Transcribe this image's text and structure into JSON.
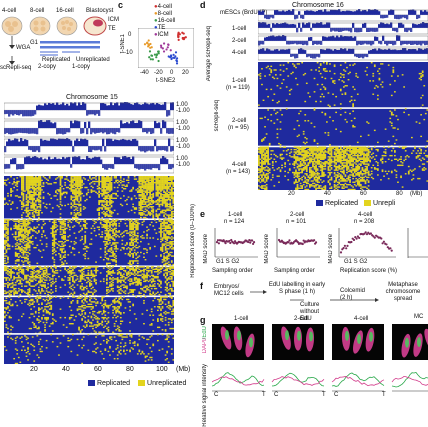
{
  "panel_a": {
    "stage_labels": [
      "4-cell",
      "8-cell",
      "16-cell",
      "Blastocyst"
    ],
    "blastocyst_labels": [
      "ICM",
      "TE"
    ],
    "method_labels": [
      "WGA",
      "scRepli-seq"
    ],
    "phase_label": "G1",
    "copy_labels": [
      "2-copy",
      "1-copy"
    ],
    "state_labels": [
      "Replicated",
      "Unreplicated"
    ]
  },
  "panel_b": {
    "chromosome_title": "Chromosome 15",
    "scale_labels": [
      "1.00",
      "-1.00"
    ],
    "x_ticks": [
      "20",
      "40",
      "60",
      "80",
      "100"
    ],
    "x_unit": "(Mb)",
    "side_label": "Replication score (0–100%)",
    "legend": [
      "Replicated",
      "Unreplicated"
    ]
  },
  "panel_c": {
    "label": "c",
    "legend": [
      "4-cell",
      "8-cell",
      "16-cell",
      "TE",
      "ICM"
    ],
    "ylabel": "t-SNE1",
    "xlabel": "t-SNE2",
    "y_ticks": [
      "0",
      "-10"
    ],
    "x_ticks": [
      "-40",
      "-20",
      "0",
      "20"
    ]
  },
  "panel_d": {
    "label": "d",
    "chromosome_title": "Chromosome 16",
    "track_labels": [
      "mESCs (BrdU-IP)",
      "1-cell",
      "2-cell",
      "4-cell"
    ],
    "average_label": "Average scRepli-seq",
    "side_label": "scRepli-seq",
    "groups": [
      {
        "name": "1-cell",
        "n": "(n = 119)"
      },
      {
        "name": "2-cell",
        "n": "(n = 95)"
      },
      {
        "name": "4-cell",
        "n": "(n = 143)"
      }
    ],
    "x_ticks": [
      "20",
      "40",
      "60",
      "80",
      "(Mb)"
    ],
    "legend": [
      "Replicated",
      "Unrepli"
    ]
  },
  "panel_e": {
    "label": "e",
    "plots": [
      {
        "title": "1-cell",
        "n": "n = 124",
        "xlabel": "Sampling order",
        "phases": "G1 S G2"
      },
      {
        "title": "2-cell",
        "n": "n = 101",
        "xlabel": "Sampling order",
        "phases": ""
      },
      {
        "title": "4-cell",
        "n": "n = 208",
        "xlabel": "Replication score (%)",
        "phases": "G1 S G2"
      }
    ],
    "ylabel": "MAD score"
  },
  "panel_f": {
    "label": "f",
    "steps": [
      "Embryos/ MC12 cells",
      "EdU labelling in early S phase (1 h)",
      "Culture without EdU",
      "Colcemid (2 h)",
      "Metaphase chromosome spread"
    ]
  },
  "panel_g": {
    "label": "g",
    "stages": [
      "1-cell",
      "2-cell",
      "4-cell",
      "MC"
    ],
    "stain_labels": [
      "DAPI",
      "EdU"
    ],
    "ylabel": "Relative signal intensity",
    "axis_labels": [
      "C",
      "T"
    ],
    "colors": {
      "dapi": "#d23a8a",
      "edu": "#2aa84a"
    }
  },
  "colors": {
    "replicated": "#1f2a9e",
    "unreplicated": "#e3d41e",
    "purple": "#7a2a5a"
  }
}
